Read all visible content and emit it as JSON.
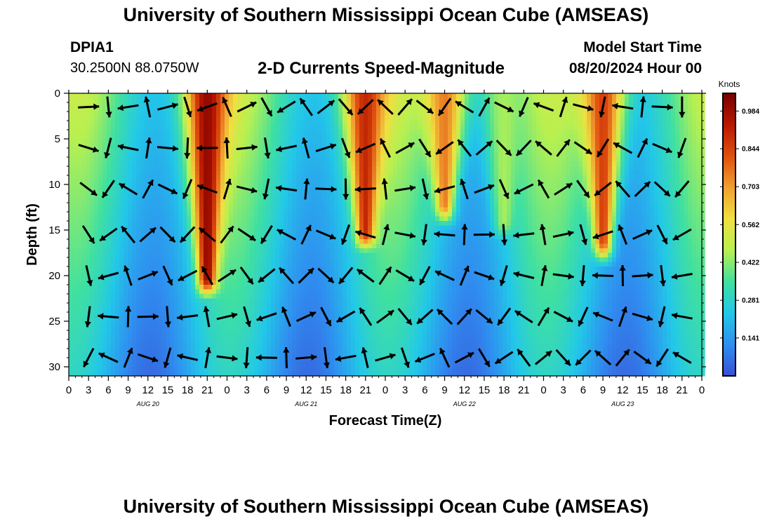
{
  "header": {
    "title_top": "University of Southern Mississippi Ocean Cube (AMSEAS)",
    "title_bottom": "University of Southern Mississippi Ocean Cube (AMSEAS)",
    "station": "DPIA1",
    "coords": "30.2500N  88.0750W",
    "chart_heading": "2-D Currents Speed-Magnitude",
    "model_label": "Model Start Time",
    "model_time": "08/20/2024 Hour 00"
  },
  "chart_data": {
    "type": "heatmap",
    "title": "2-D Currents Speed-Magnitude",
    "xlabel": "Forecast Time(Z)",
    "ylabel": "Depth (ft)",
    "x_tick_labels": [
      "0",
      "3",
      "6",
      "9",
      "12",
      "15",
      "18",
      "21",
      "0",
      "3",
      "6",
      "9",
      "12",
      "15",
      "18",
      "21",
      "0",
      "3",
      "6",
      "9",
      "12",
      "15",
      "18",
      "21",
      "0",
      "3",
      "6",
      "9",
      "12",
      "15",
      "18",
      "21",
      "0"
    ],
    "x_hour_range": [
      0,
      96
    ],
    "day_labels": [
      {
        "label": "AUG 20",
        "hour": 12
      },
      {
        "label": "AUG 21",
        "hour": 36
      },
      {
        "label": "AUG 22",
        "hour": 60
      },
      {
        "label": "AUG 23",
        "hour": 84
      }
    ],
    "y_ticks": [
      0,
      5,
      10,
      15,
      20,
      25,
      30
    ],
    "ylim": [
      0,
      31
    ],
    "colorbar": {
      "label": "Knots",
      "ticks": [
        "0.984",
        "0.844",
        "0.703",
        "0.562",
        "0.422",
        "0.281",
        "0.141"
      ],
      "range": [
        0,
        1.05
      ],
      "colors": [
        "#3a4fd6",
        "#2f8ff0",
        "#22c8e8",
        "#40e0a0",
        "#b8f050",
        "#f0e040",
        "#f0a030",
        "#e05010",
        "#b81800",
        "#780000"
      ]
    },
    "high_speed_cores": [
      {
        "hour": 21,
        "peak_knots": 1.0,
        "max_depth_ft": 20
      },
      {
        "hour": 45,
        "peak_knots": 0.9,
        "max_depth_ft": 15
      },
      {
        "hour": 57,
        "peak_knots": 0.75,
        "max_depth_ft": 12
      },
      {
        "hour": 66,
        "peak_knots": 0.45,
        "max_depth_ft": 14
      },
      {
        "hour": 81,
        "peak_knots": 0.85,
        "max_depth_ft": 16
      }
    ],
    "background_knots_surface": 0.5,
    "background_knots_bottom": 0.18,
    "vector_hour_step": 3,
    "vector_depth_levels_ft": [
      1.5,
      6,
      10.5,
      15.5,
      20,
      24.5,
      29
    ]
  }
}
